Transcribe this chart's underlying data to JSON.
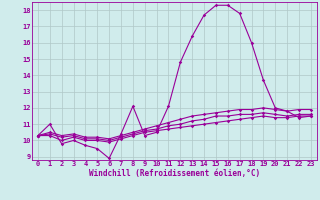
{
  "title": "",
  "xlabel": "Windchill (Refroidissement éolien,°C)",
  "ylabel": "",
  "background_color": "#d0ecec",
  "grid_color": "#b0c8c8",
  "line_color": "#990099",
  "xlim": [
    -0.5,
    23.5
  ],
  "ylim": [
    8.8,
    18.5
  ],
  "yticks": [
    9,
    10,
    11,
    12,
    13,
    14,
    15,
    16,
    17,
    18
  ],
  "xticks": [
    0,
    1,
    2,
    3,
    4,
    5,
    6,
    7,
    8,
    9,
    10,
    11,
    12,
    13,
    14,
    15,
    16,
    17,
    18,
    19,
    20,
    21,
    22,
    23
  ],
  "curve1_x": [
    0,
    1,
    2,
    3,
    4,
    5,
    6,
    7,
    8,
    9,
    10,
    11,
    12,
    13,
    14,
    15,
    16,
    17,
    18,
    19,
    20,
    21,
    22,
    23
  ],
  "curve1_y": [
    10.3,
    11.0,
    9.8,
    10.0,
    9.7,
    9.5,
    8.9,
    10.4,
    12.1,
    10.3,
    10.5,
    12.1,
    14.8,
    16.4,
    17.7,
    18.3,
    18.3,
    17.8,
    16.0,
    13.7,
    12.0,
    11.8,
    11.4,
    11.5
  ],
  "curve2_x": [
    0,
    1,
    2,
    3,
    4,
    5,
    6,
    7,
    8,
    9,
    10,
    11,
    12,
    13,
    14,
    15,
    16,
    17,
    18,
    19,
    20,
    21,
    22,
    23
  ],
  "curve2_y": [
    10.3,
    10.3,
    10.0,
    10.2,
    10.0,
    10.0,
    9.9,
    10.1,
    10.3,
    10.5,
    10.6,
    10.7,
    10.8,
    10.9,
    11.0,
    11.1,
    11.2,
    11.3,
    11.4,
    11.5,
    11.4,
    11.4,
    11.5,
    11.5
  ],
  "curve3_x": [
    0,
    1,
    2,
    3,
    4,
    5,
    6,
    7,
    8,
    9,
    10,
    11,
    12,
    13,
    14,
    15,
    16,
    17,
    18,
    19,
    20,
    21,
    22,
    23
  ],
  "curve3_y": [
    10.3,
    10.4,
    10.2,
    10.3,
    10.1,
    10.1,
    10.0,
    10.2,
    10.4,
    10.6,
    10.7,
    10.9,
    11.0,
    11.2,
    11.3,
    11.5,
    11.5,
    11.6,
    11.6,
    11.7,
    11.6,
    11.5,
    11.6,
    11.6
  ],
  "curve4_x": [
    0,
    1,
    2,
    3,
    4,
    5,
    6,
    7,
    8,
    9,
    10,
    11,
    12,
    13,
    14,
    15,
    16,
    17,
    18,
    19,
    20,
    21,
    22,
    23
  ],
  "curve4_y": [
    10.3,
    10.5,
    10.3,
    10.4,
    10.2,
    10.2,
    10.1,
    10.3,
    10.5,
    10.7,
    10.9,
    11.1,
    11.3,
    11.5,
    11.6,
    11.7,
    11.8,
    11.9,
    11.9,
    12.0,
    11.9,
    11.8,
    11.9,
    11.9
  ],
  "tick_fontsize": 5.0,
  "xlabel_fontsize": 5.5
}
